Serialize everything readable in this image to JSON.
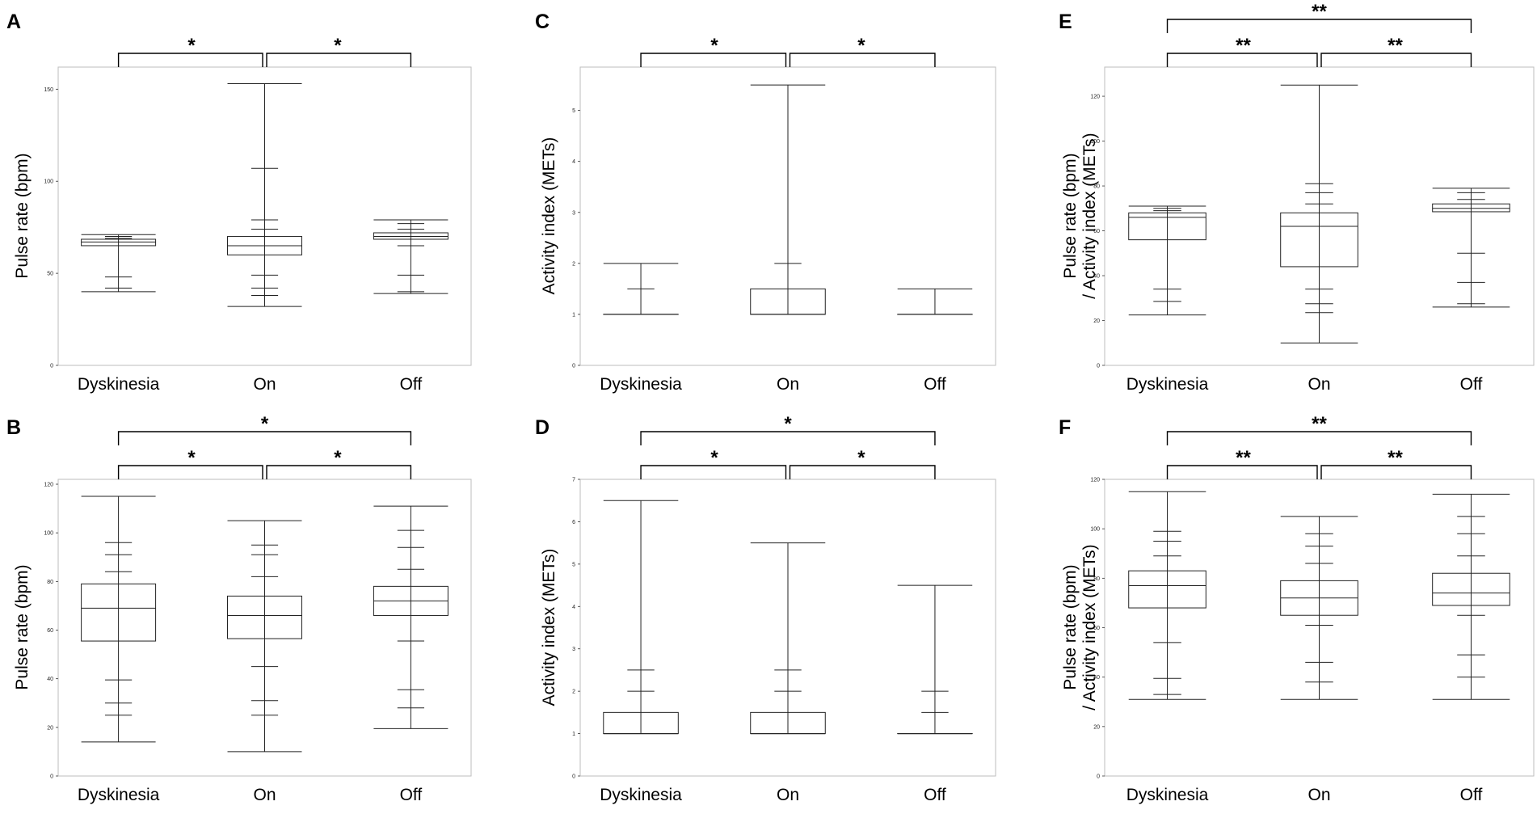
{
  "figure": {
    "panel_letters": [
      "A",
      "B",
      "C",
      "D",
      "E",
      "F"
    ]
  },
  "chart_data": [
    {
      "id": "A",
      "type": "box",
      "ylabel": [
        "Pulse rate (bpm)"
      ],
      "categories": [
        "Dyskinesia",
        "On",
        "Off"
      ],
      "ylim": [
        0,
        162
      ],
      "yticks": [
        0,
        50,
        100,
        150
      ],
      "boxes": [
        {
          "q1": 65,
          "median": 67,
          "q3": 68.5,
          "min": 40,
          "max": 71,
          "marks": [
            42,
            48,
            69,
            70
          ]
        },
        {
          "q1": 60,
          "median": 65,
          "q3": 70,
          "min": 32,
          "max": 153,
          "marks": [
            38,
            42,
            49,
            74,
            79,
            107
          ]
        },
        {
          "q1": 68.5,
          "median": 70,
          "q3": 72,
          "min": 39,
          "max": 79,
          "marks": [
            40,
            49,
            65,
            74,
            77
          ]
        }
      ],
      "significance": [
        {
          "from": 0,
          "to": 1,
          "label": "*",
          "level": 1
        },
        {
          "from": 1,
          "to": 2,
          "label": "*",
          "level": 1
        }
      ]
    },
    {
      "id": "B",
      "type": "box",
      "ylabel": [
        "Pulse rate (bpm)"
      ],
      "categories": [
        "Dyskinesia",
        "On",
        "Off"
      ],
      "ylim": [
        0,
        122
      ],
      "yticks": [
        0,
        20,
        40,
        60,
        80,
        100,
        120
      ],
      "boxes": [
        {
          "q1": 55.5,
          "median": 69,
          "q3": 79,
          "min": 14,
          "max": 115,
          "marks": [
            25,
            30,
            39.5,
            84,
            91,
            96
          ]
        },
        {
          "q1": 56.5,
          "median": 66,
          "q3": 74,
          "min": 10,
          "max": 105,
          "marks": [
            25,
            31,
            45,
            82,
            91,
            95
          ]
        },
        {
          "q1": 66,
          "median": 72,
          "q3": 78,
          "min": 19.5,
          "max": 111,
          "marks": [
            28,
            35.5,
            55.5,
            85,
            94,
            101
          ]
        }
      ],
      "significance": [
        {
          "from": 0,
          "to": 1,
          "label": "*",
          "level": 1
        },
        {
          "from": 1,
          "to": 2,
          "label": "*",
          "level": 1
        },
        {
          "from": 0,
          "to": 2,
          "label": "*",
          "level": 2
        }
      ]
    },
    {
      "id": "C",
      "type": "box",
      "ylabel": [
        "Activity index (METs)"
      ],
      "categories": [
        "Dyskinesia",
        "On",
        "Off"
      ],
      "ylim": [
        0,
        5.85
      ],
      "yticks": [
        0,
        1,
        2,
        3,
        4,
        5
      ],
      "boxes": [
        {
          "q1": 1,
          "median": 1,
          "q3": 1,
          "min": 1,
          "max": 2,
          "marks": [
            1.5
          ]
        },
        {
          "q1": 1,
          "median": 1,
          "q3": 1.5,
          "min": 1,
          "max": 5.5,
          "marks": [
            2
          ]
        },
        {
          "q1": 1,
          "median": 1,
          "q3": 1,
          "min": 1,
          "max": 1.5,
          "marks": []
        }
      ],
      "significance": [
        {
          "from": 0,
          "to": 1,
          "label": "*",
          "level": 1
        },
        {
          "from": 1,
          "to": 2,
          "label": "*",
          "level": 1
        }
      ]
    },
    {
      "id": "D",
      "type": "box",
      "ylabel": [
        "Activity index (METs)"
      ],
      "categories": [
        "Dyskinesia",
        "On",
        "Off"
      ],
      "ylim": [
        0,
        7
      ],
      "yticks": [
        0,
        1,
        2,
        3,
        4,
        5,
        6,
        7
      ],
      "boxes": [
        {
          "q1": 1,
          "median": 1,
          "q3": 1.5,
          "min": 1,
          "max": 6.5,
          "marks": [
            2,
            2.5
          ]
        },
        {
          "q1": 1,
          "median": 1,
          "q3": 1.5,
          "min": 1,
          "max": 5.5,
          "marks": [
            2,
            2.5
          ]
        },
        {
          "q1": 1,
          "median": 1,
          "q3": 1,
          "min": 1,
          "max": 4.5,
          "marks": [
            1.5,
            2
          ]
        }
      ],
      "significance": [
        {
          "from": 0,
          "to": 1,
          "label": "*",
          "level": 1
        },
        {
          "from": 1,
          "to": 2,
          "label": "*",
          "level": 1
        },
        {
          "from": 0,
          "to": 2,
          "label": "*",
          "level": 2
        }
      ]
    },
    {
      "id": "E",
      "type": "box",
      "ylabel": [
        "Pulse rate (bpm)",
        "/ Activity index (METs)"
      ],
      "categories": [
        "Dyskinesia",
        "On",
        "Off"
      ],
      "ylim": [
        0,
        133
      ],
      "yticks": [
        0,
        20,
        40,
        60,
        80,
        100,
        120
      ],
      "boxes": [
        {
          "q1": 56,
          "median": 66,
          "q3": 68,
          "min": 22.5,
          "max": 71,
          "marks": [
            28.5,
            34,
            69,
            70
          ]
        },
        {
          "q1": 44,
          "median": 62,
          "q3": 68,
          "min": 10,
          "max": 125,
          "marks": [
            23.5,
            27.5,
            34,
            72,
            77,
            81
          ]
        },
        {
          "q1": 68.5,
          "median": 70,
          "q3": 72,
          "min": 26,
          "max": 79,
          "marks": [
            27.5,
            37,
            50,
            74,
            77
          ]
        }
      ],
      "significance": [
        {
          "from": 0,
          "to": 1,
          "label": "**",
          "level": 1
        },
        {
          "from": 1,
          "to": 2,
          "label": "**",
          "level": 1
        },
        {
          "from": 0,
          "to": 2,
          "label": "**",
          "level": 2
        }
      ]
    },
    {
      "id": "F",
      "type": "box",
      "ylabel": [
        "Pulse rate (bpm)",
        "/ Activity index (METs)"
      ],
      "categories": [
        "Dyskinesia",
        "On",
        "Off"
      ],
      "ylim": [
        0,
        120
      ],
      "yticks": [
        0,
        20,
        40,
        60,
        80,
        100,
        120
      ],
      "boxes": [
        {
          "q1": 68,
          "median": 77,
          "q3": 83,
          "min": 31,
          "max": 115,
          "marks": [
            33,
            39.5,
            54,
            89,
            95,
            99
          ]
        },
        {
          "q1": 65,
          "median": 72,
          "q3": 79,
          "min": 31,
          "max": 105,
          "marks": [
            38,
            46,
            61,
            86,
            93,
            98
          ]
        },
        {
          "q1": 69,
          "median": 74,
          "q3": 82,
          "min": 31,
          "max": 114,
          "marks": [
            40,
            49,
            65,
            89,
            98,
            105
          ]
        }
      ],
      "significance": [
        {
          "from": 0,
          "to": 1,
          "label": "**",
          "level": 1
        },
        {
          "from": 1,
          "to": 2,
          "label": "**",
          "level": 1
        },
        {
          "from": 0,
          "to": 2,
          "label": "**",
          "level": 2
        }
      ]
    }
  ]
}
